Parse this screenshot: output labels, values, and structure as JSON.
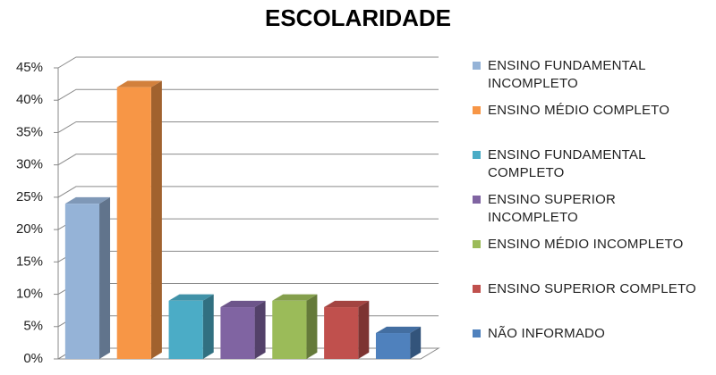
{
  "chart_data": {
    "type": "bar3d",
    "title": "ESCOLARIDADE",
    "series": [
      {
        "name": "ENSINO FUNDAMENTAL INCOMPLETO",
        "color": "#95b3d7",
        "values": [
          24
        ]
      },
      {
        "name": "ENSINO MÉDIO COMPLETO",
        "color": "#f79646",
        "values": [
          42
        ]
      },
      {
        "name": "ENSINO FUNDAMENTAL COMPLETO",
        "color": "#4bacc6",
        "values": [
          9
        ]
      },
      {
        "name": "ENSINO SUPERIOR INCOMPLETO",
        "color": "#8064a2",
        "values": [
          8
        ]
      },
      {
        "name": "ENSINO MÉDIO INCOMPLETO",
        "color": "#9bbb59",
        "values": [
          9
        ]
      },
      {
        "name": "ENSINO SUPERIOR COMPLETO",
        "color": "#c0504d",
        "values": [
          8
        ]
      },
      {
        "name": "NÃO INFORMADO",
        "color": "#4f81bd",
        "values": [
          4
        ]
      }
    ],
    "ylim": [
      0,
      45
    ],
    "yticks": [
      {
        "value": 0,
        "label": "0%"
      },
      {
        "value": 5,
        "label": "5%"
      },
      {
        "value": 10,
        "label": "10%"
      },
      {
        "value": 15,
        "label": "15%"
      },
      {
        "value": 20,
        "label": "20%"
      },
      {
        "value": 25,
        "label": "25%"
      },
      {
        "value": 30,
        "label": "30%"
      },
      {
        "value": 35,
        "label": "35%"
      },
      {
        "value": 40,
        "label": "40%"
      },
      {
        "value": 45,
        "label": "45%"
      }
    ],
    "grid": true,
    "legend": "right"
  }
}
